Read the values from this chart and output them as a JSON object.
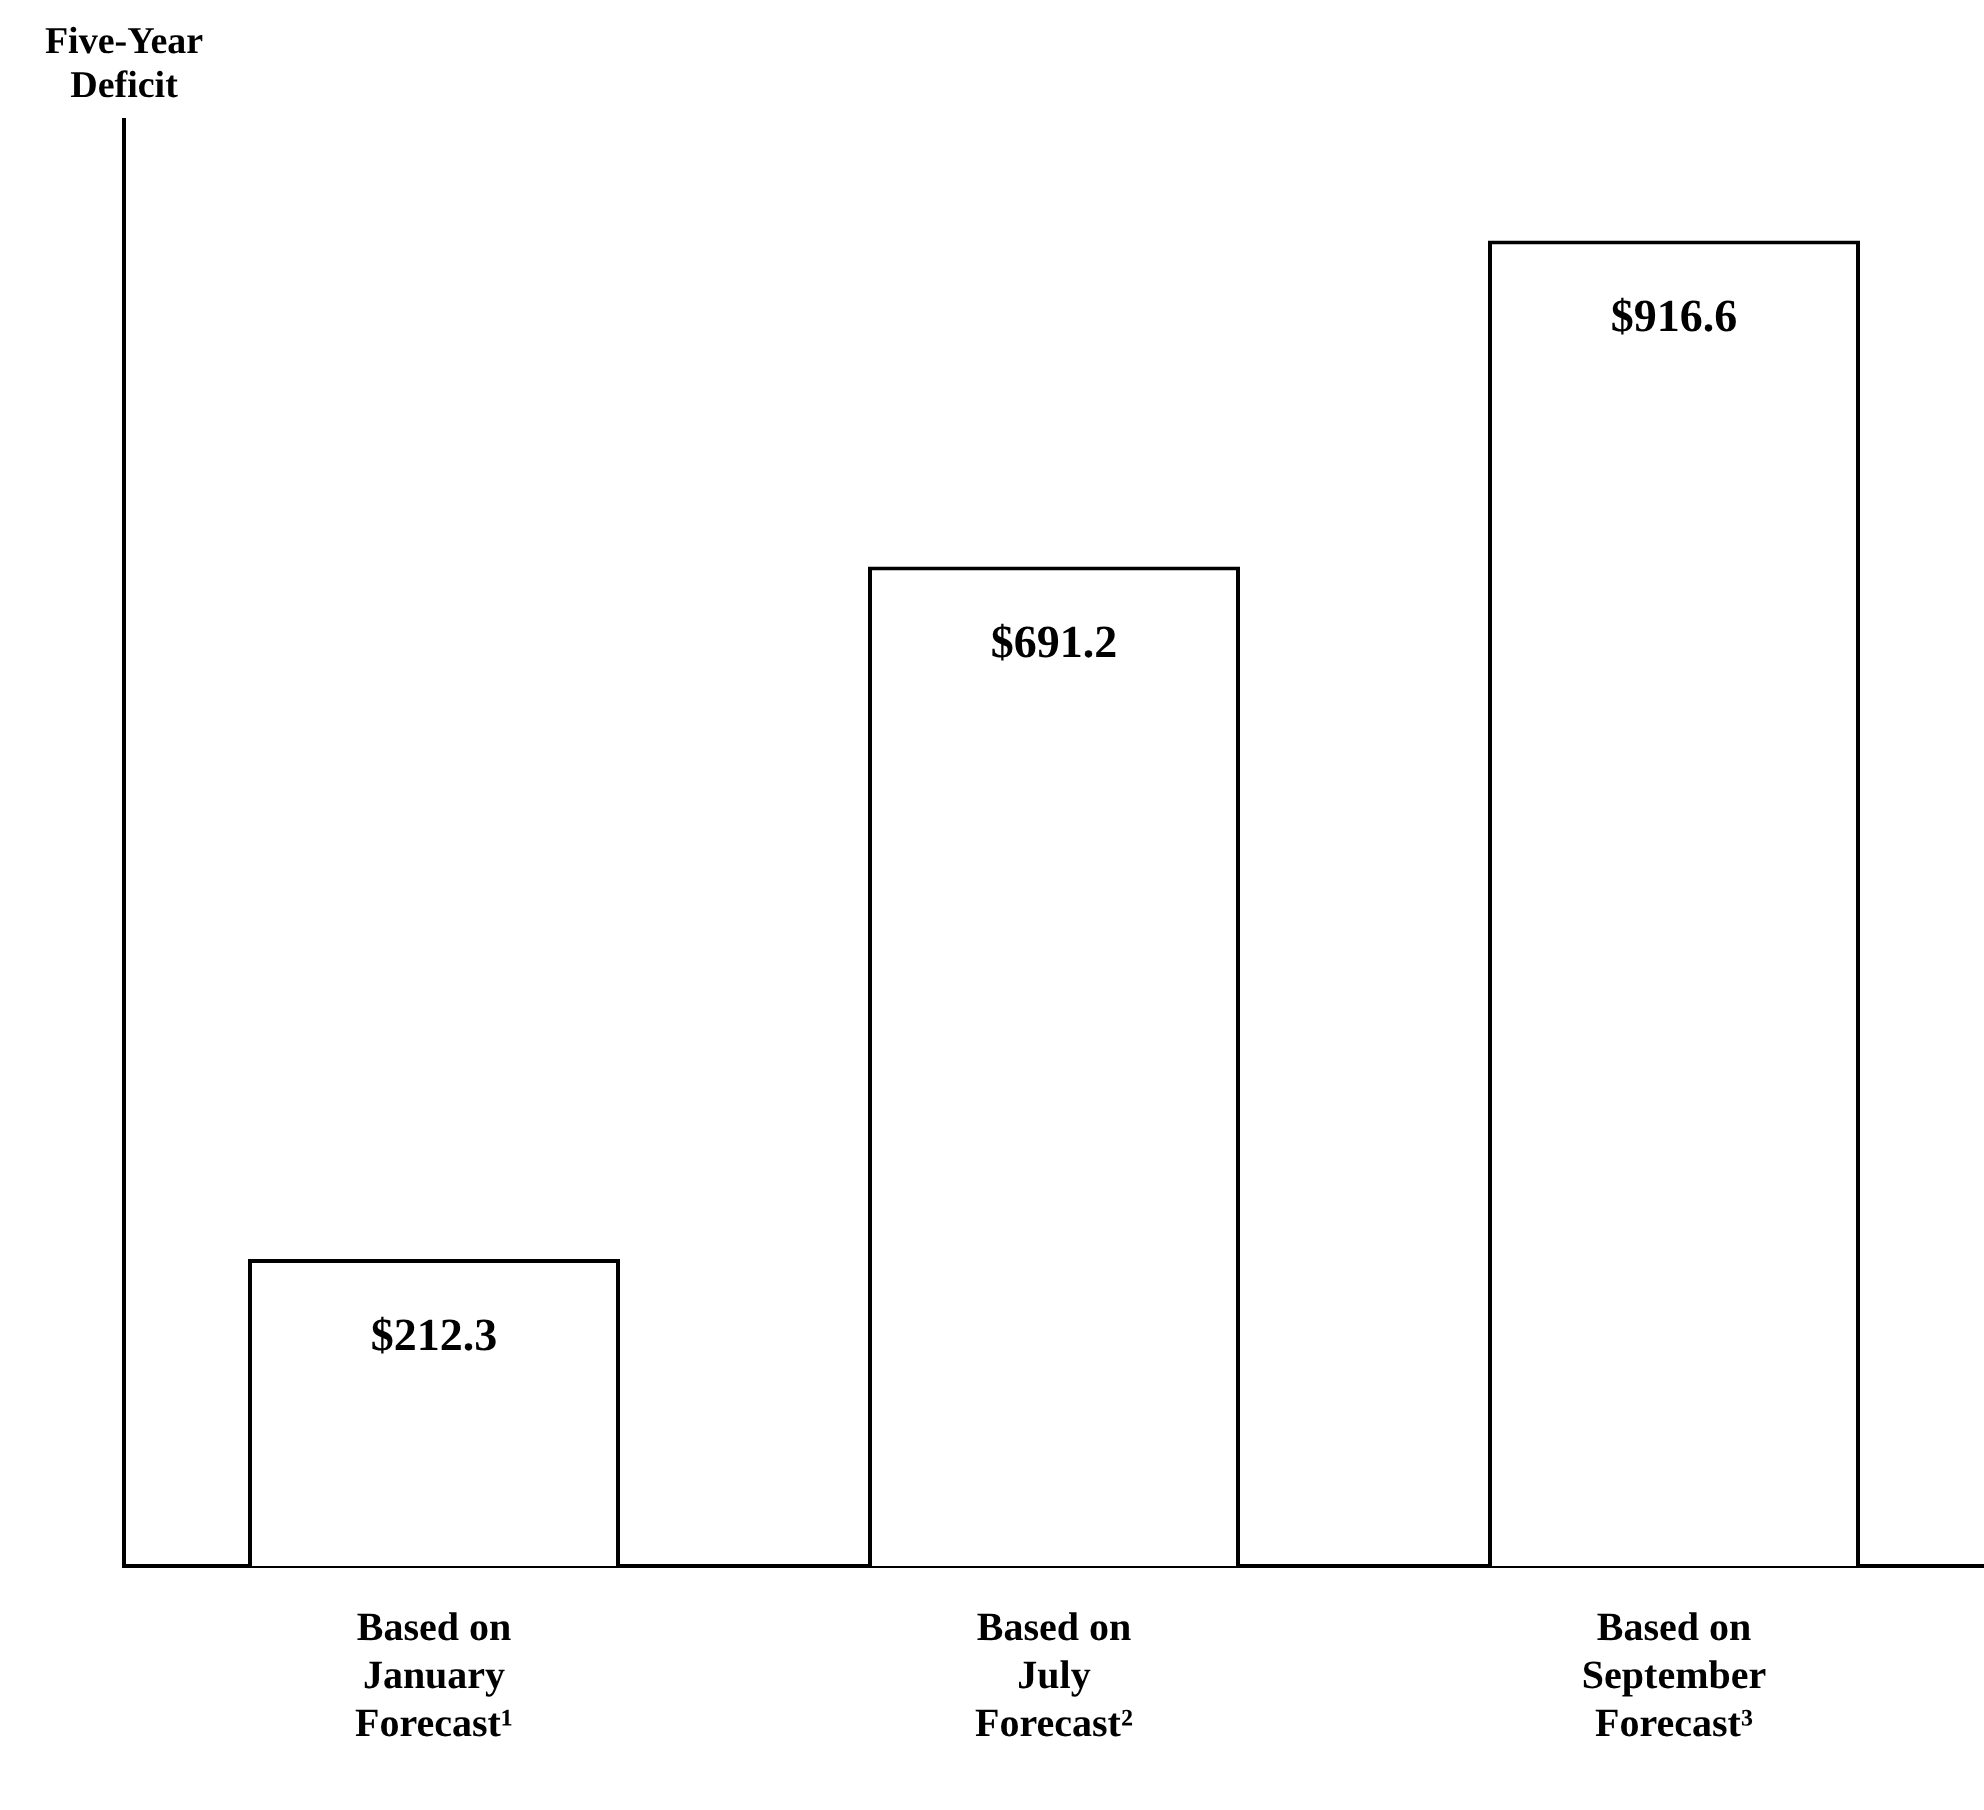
{
  "chart_data": {
    "type": "bar",
    "ylabel": "Five-Year Deficit",
    "categories": [
      "Based on January Forecast¹",
      "Based on July Forecast²",
      "Based on September Forecast³"
    ],
    "values": [
      212.3,
      691.2,
      916.6
    ],
    "color": "#ffffff",
    "value_labels": [
      "$212.3",
      "$691.2",
      "$916.6"
    ],
    "ylim": [
      0,
      1000
    ],
    "tick_labels": "x"
  }
}
